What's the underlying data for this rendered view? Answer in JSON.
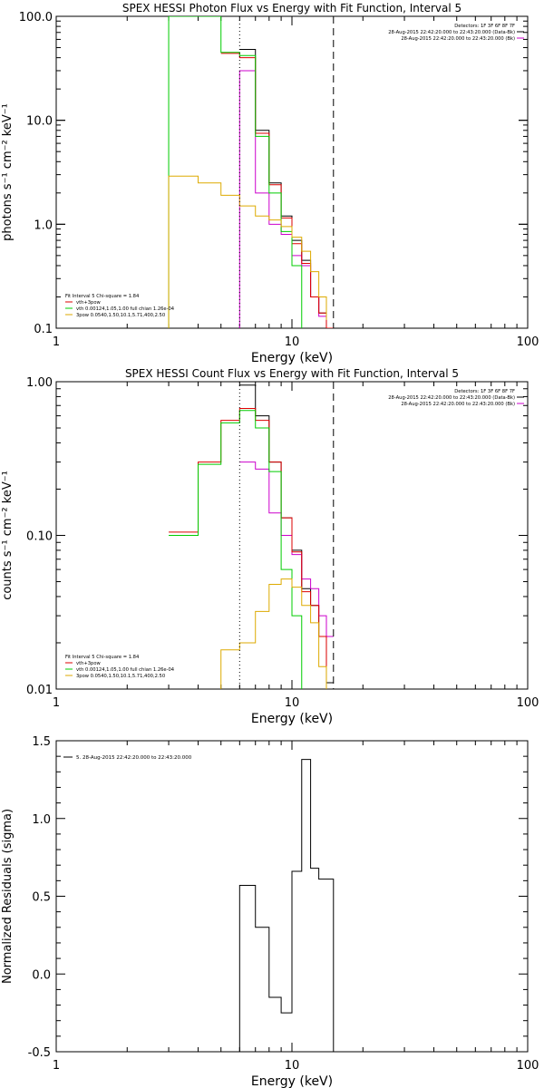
{
  "chart_data": [
    {
      "type": "line",
      "title": "SPEX HESSI Photon Flux vs Energy with Fit Function, Interval 5",
      "xlabel": "Energy (keV)",
      "ylabel": "photons s⁻¹ cm⁻² keV⁻¹",
      "xscale": "log",
      "yscale": "log",
      "xlim": [
        1,
        100
      ],
      "ylim": [
        0.1,
        100
      ],
      "xticks": [
        "1",
        "10",
        "100"
      ],
      "yticks": [
        "0.1",
        "1.0",
        "10.0",
        "100.0"
      ],
      "legend_top": [
        "Detectors: 1F 3F 6F 8F 7F",
        "28-Aug-2015 22:42:20.000 to 22:43:20.000 (Data-Bk)",
        "28-Aug-2015 22:42:20.000 to 22:43:20.000 (Bk)"
      ],
      "legend_top_colors": [
        "",
        "#000000",
        "#cc00cc"
      ],
      "legend_bottom": [
        "Fit Interval 5   Chi-square = 1.84",
        "vth+3pow",
        "vth 0.00124,1.05,1.00  full chian 1.26e-04",
        "3pow 0.0540,1.50,10.1,5.71,400,2.50"
      ],
      "legend_bottom_colors": [
        "",
        "#dd0000",
        "#00cc00",
        "#ddaa00"
      ],
      "vlines": [
        {
          "x": 6.0,
          "style": "dotted"
        },
        {
          "x": 15.0,
          "style": "dashed"
        }
      ],
      "series": [
        {
          "color": "#000000",
          "edges": [
            6,
            7,
            8,
            9,
            10,
            11,
            12,
            13,
            14,
            15
          ],
          "values": [
            48,
            8,
            2.5,
            1.2,
            0.7,
            0.45,
            0.2,
            0.14,
            0.1
          ],
          "drop_last": true
        },
        {
          "color": "#cc00cc",
          "edges": [
            6,
            7,
            8,
            9,
            10,
            11,
            12,
            13,
            14,
            15
          ],
          "values": [
            30,
            2.0,
            1.0,
            0.8,
            0.5,
            0.4,
            0.2,
            0.13,
            0.1
          ],
          "drop_first": true,
          "drop_last": true
        },
        {
          "color": "#dd0000",
          "edges": [
            5,
            6,
            7,
            8,
            9,
            10,
            11,
            12,
            13,
            14,
            15
          ],
          "values": [
            44,
            40,
            7.5,
            2.4,
            1.15,
            0.65,
            0.42,
            0.2,
            0.14,
            0.1
          ],
          "drop_last": true
        },
        {
          "color": "#00cc00",
          "edges": [
            3,
            4,
            5,
            6,
            7,
            8,
            9,
            10,
            11
          ],
          "values": [
            100,
            100,
            45,
            42,
            7.0,
            2.0,
            0.85,
            0.4
          ],
          "drop_first": true,
          "drop_last": true
        },
        {
          "color": "#ddaa00",
          "edges": [
            3,
            4,
            5,
            6,
            7,
            8,
            9,
            10,
            11,
            12,
            13,
            14
          ],
          "values": [
            2.9,
            2.5,
            1.9,
            1.5,
            1.2,
            1.1,
            0.95,
            0.75,
            0.55,
            0.35,
            0.2,
            0.12
          ],
          "drop_first": true,
          "drop_last": true
        }
      ]
    },
    {
      "type": "line",
      "title": "SPEX HESSI Count Flux vs Energy with Fit Function, Interval 5",
      "xlabel": "Energy (keV)",
      "ylabel": "counts s⁻¹ cm⁻² keV⁻¹",
      "xscale": "log",
      "yscale": "log",
      "xlim": [
        1,
        100
      ],
      "ylim": [
        0.01,
        1
      ],
      "xticks": [
        "1",
        "10",
        "100"
      ],
      "yticks": [
        "0.01",
        "0.10",
        "1.00"
      ],
      "legend_top": [
        "Detectors: 1F 3F 6F 8F 7F",
        "28-Aug-2015 22:42:20.000 to 22:43:20.000 (Data-Bk)",
        "28-Aug-2015 22:42:20.000 to 22:43:20.000 (Bk)"
      ],
      "legend_top_colors": [
        "",
        "#000000",
        "#cc00cc"
      ],
      "legend_bottom": [
        "Fit Interval 5   Chi-square = 1.84",
        "vth+3pow",
        "vth 0.00124,1.05,1.00  full chian 1.26e-04",
        "3pow 0.0540,1.50,10.1,5.71,400,2.50"
      ],
      "legend_bottom_colors": [
        "",
        "#dd0000",
        "#00cc00",
        "#ddaa00"
      ],
      "vlines": [
        {
          "x": 6.0,
          "style": "dotted"
        },
        {
          "x": 15.0,
          "style": "dashed"
        }
      ],
      "series": [
        {
          "color": "#000000",
          "edges": [
            6,
            7,
            8,
            9,
            10,
            11,
            12,
            13,
            14,
            15
          ],
          "values": [
            0.95,
            0.6,
            0.3,
            0.13,
            0.08,
            0.045,
            0.035,
            0.022,
            0.011
          ]
        },
        {
          "color": "#cc00cc",
          "edges": [
            6,
            7,
            8,
            9,
            10,
            11,
            12,
            13,
            14,
            15
          ],
          "values": [
            0.3,
            0.27,
            0.14,
            0.1,
            0.075,
            0.052,
            0.045,
            0.03,
            0.022
          ]
        },
        {
          "color": "#dd0000",
          "edges": [
            3,
            4,
            5,
            6,
            7,
            8,
            9,
            10,
            11,
            12,
            13,
            14
          ],
          "values": [
            0.105,
            0.3,
            0.56,
            0.67,
            0.56,
            0.3,
            0.13,
            0.078,
            0.043,
            0.035,
            0.022,
            0.011
          ]
        },
        {
          "color": "#00cc00",
          "edges": [
            3,
            4,
            5,
            6,
            7,
            8,
            9,
            10,
            11
          ],
          "values": [
            0.1,
            0.29,
            0.54,
            0.65,
            0.5,
            0.26,
            0.06,
            0.03
          ],
          "drop_last": true
        },
        {
          "color": "#ddaa00",
          "edges": [
            5,
            6,
            7,
            8,
            9,
            10,
            11,
            12,
            13,
            14
          ],
          "values": [
            0.018,
            0.02,
            0.032,
            0.048,
            0.052,
            0.046,
            0.035,
            0.027,
            0.014
          ],
          "drop_first": true,
          "drop_last": true
        }
      ]
    },
    {
      "type": "line",
      "title": "",
      "xlabel": "Energy (keV)",
      "ylabel": "Normalized Residuals (sigma)",
      "xscale": "log",
      "yscale": "linear",
      "xlim": [
        1,
        100
      ],
      "ylim": [
        -0.5,
        1.5
      ],
      "xticks": [
        "1",
        "10",
        "100"
      ],
      "yticks": [
        "-0.5",
        "0.0",
        "0.5",
        "1.0",
        "1.5"
      ],
      "legend_top": [
        "5. 28-Aug-2015 22:42:20.000 to 22:43:20.000"
      ],
      "legend_top_colors": [
        "#000000"
      ],
      "legend_bottom": [],
      "legend_bottom_colors": [],
      "vlines": [],
      "series": [
        {
          "color": "#000000",
          "edges": [
            6,
            7,
            8,
            9,
            10,
            11,
            12,
            13,
            14,
            15
          ],
          "values": [
            0.57,
            0.3,
            -0.15,
            -0.25,
            0.66,
            1.38,
            0.68,
            0.61,
            0.61
          ],
          "drop_first": true,
          "drop_last": true
        }
      ]
    }
  ]
}
